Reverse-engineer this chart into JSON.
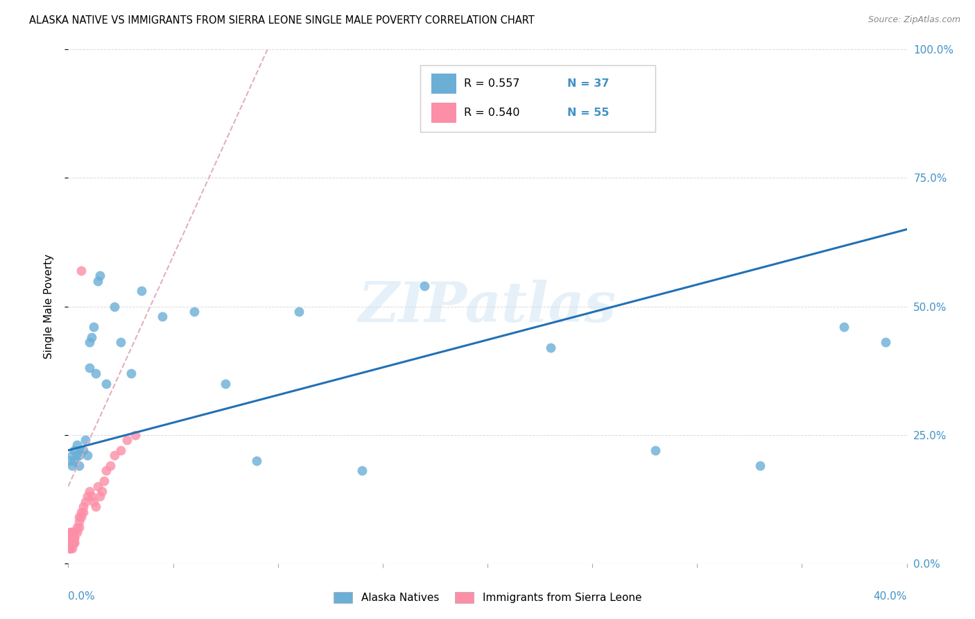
{
  "title": "ALASKA NATIVE VS IMMIGRANTS FROM SIERRA LEONE SINGLE MALE POVERTY CORRELATION CHART",
  "source": "Source: ZipAtlas.com",
  "ylabel": "Single Male Poverty",
  "ytick_vals": [
    0.0,
    0.25,
    0.5,
    0.75,
    1.0
  ],
  "ytick_labels": [
    "0.0%",
    "25.0%",
    "50.0%",
    "75.0%",
    "100.0%"
  ],
  "xtick_vals": [
    0.0,
    0.05,
    0.1,
    0.15,
    0.2,
    0.25,
    0.3,
    0.35,
    0.4
  ],
  "xlim": [
    0.0,
    0.4
  ],
  "ylim": [
    0.0,
    1.0
  ],
  "color_blue": "#6baed6",
  "color_pink": "#fc8fa7",
  "color_blue_text": "#4292c6",
  "color_trendline_blue": "#2171b5",
  "color_grid": "#d0d0d0",
  "watermark": "ZIPatlas",
  "alaska_x": [
    0.001,
    0.002,
    0.002,
    0.003,
    0.003,
    0.004,
    0.004,
    0.005,
    0.005,
    0.006,
    0.007,
    0.008,
    0.009,
    0.01,
    0.01,
    0.011,
    0.012,
    0.013,
    0.014,
    0.015,
    0.018,
    0.022,
    0.025,
    0.03,
    0.035,
    0.045,
    0.06,
    0.075,
    0.09,
    0.11,
    0.14,
    0.17,
    0.23,
    0.28,
    0.33,
    0.37,
    0.39
  ],
  "alaska_y": [
    0.2,
    0.19,
    0.21,
    0.2,
    0.22,
    0.21,
    0.23,
    0.19,
    0.21,
    0.22,
    0.22,
    0.24,
    0.21,
    0.38,
    0.43,
    0.44,
    0.46,
    0.37,
    0.55,
    0.56,
    0.35,
    0.5,
    0.43,
    0.37,
    0.53,
    0.48,
    0.49,
    0.35,
    0.2,
    0.49,
    0.18,
    0.54,
    0.42,
    0.22,
    0.19,
    0.46,
    0.43
  ],
  "sierra_x": [
    0.0005,
    0.0005,
    0.0005,
    0.0005,
    0.001,
    0.001,
    0.001,
    0.001,
    0.001,
    0.001,
    0.001,
    0.001,
    0.001,
    0.001,
    0.001,
    0.001,
    0.002,
    0.002,
    0.002,
    0.002,
    0.002,
    0.002,
    0.002,
    0.002,
    0.003,
    0.003,
    0.003,
    0.003,
    0.003,
    0.003,
    0.004,
    0.004,
    0.005,
    0.005,
    0.005,
    0.006,
    0.006,
    0.007,
    0.007,
    0.008,
    0.009,
    0.01,
    0.011,
    0.012,
    0.013,
    0.014,
    0.015,
    0.016,
    0.017,
    0.018,
    0.02,
    0.022,
    0.025,
    0.028,
    0.032
  ],
  "sierra_y": [
    0.04,
    0.03,
    0.05,
    0.04,
    0.04,
    0.03,
    0.06,
    0.05,
    0.04,
    0.03,
    0.04,
    0.05,
    0.03,
    0.04,
    0.06,
    0.05,
    0.04,
    0.05,
    0.04,
    0.06,
    0.03,
    0.05,
    0.06,
    0.04,
    0.05,
    0.04,
    0.06,
    0.05,
    0.04,
    0.06,
    0.07,
    0.06,
    0.08,
    0.07,
    0.09,
    0.1,
    0.09,
    0.11,
    0.1,
    0.12,
    0.13,
    0.14,
    0.13,
    0.12,
    0.11,
    0.15,
    0.13,
    0.14,
    0.16,
    0.18,
    0.19,
    0.21,
    0.22,
    0.24,
    0.25
  ],
  "sierra_outlier_x": [
    0.006
  ],
  "sierra_outlier_y": [
    0.57
  ],
  "blue_trend_x": [
    0.0,
    0.4
  ],
  "blue_trend_y": [
    0.22,
    0.65
  ],
  "pink_trend_x": [
    0.0,
    0.095
  ],
  "pink_trend_y": [
    0.15,
    1.0
  ],
  "legend_items": [
    {
      "color": "#6baed6",
      "r_text": "R = 0.557",
      "n_text": "N = 37"
    },
    {
      "color": "#fc8fa7",
      "r_text": "R = 0.540",
      "n_text": "N = 55"
    }
  ]
}
